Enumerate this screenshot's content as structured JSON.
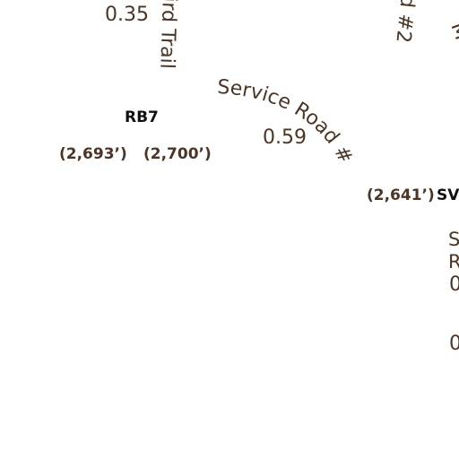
{
  "trails": {
    "trail_a": "ird Trail",
    "road_2_fragment": "d #2",
    "road_m_fragment": "M",
    "service_road_3": "Service Road #3",
    "s_fragment": "S",
    "r_fragment": "R"
  },
  "distances": {
    "d_035": "0.35",
    "d_059": "0.59",
    "d_0_upper": "0",
    "d_0_lower": "0"
  },
  "elevations": {
    "e_2693": "(2,693’)",
    "e_2700": "(2,700’)",
    "e_2641": "(2,641’)"
  },
  "waypoints": {
    "rb7": "RB7",
    "sv_fragment": "SV:"
  }
}
